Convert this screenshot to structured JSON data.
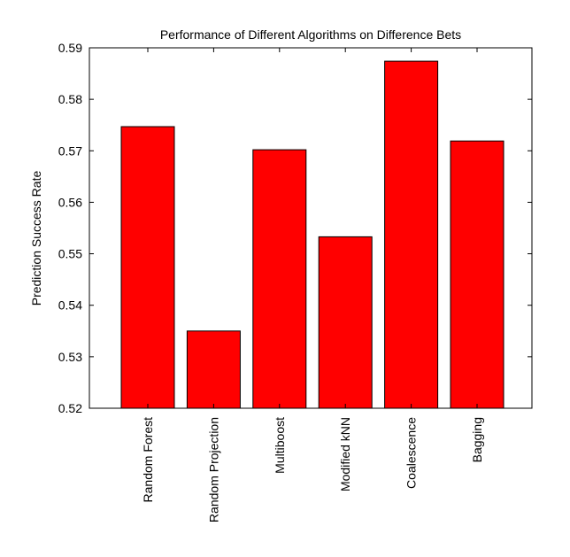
{
  "chart_data": {
    "type": "bar",
    "title": "Performance of Different Algorithms on Difference Bets",
    "xlabel": "",
    "ylabel": "Prediction Success Rate",
    "categories": [
      "Random Forest",
      "Random Projection",
      "Multiboost",
      "Modified kNN",
      "Coalescence",
      "Bagging"
    ],
    "values": [
      0.5747,
      0.535,
      0.5702,
      0.5533,
      0.5874,
      0.5719
    ],
    "ylim": [
      0.52,
      0.59
    ],
    "yticks": [
      "0.52",
      "0.53",
      "0.54",
      "0.55",
      "0.56",
      "0.57",
      "0.58",
      "0.59"
    ],
    "grid": false,
    "bar_color": "#ff0000",
    "edge_color": "#000000"
  }
}
